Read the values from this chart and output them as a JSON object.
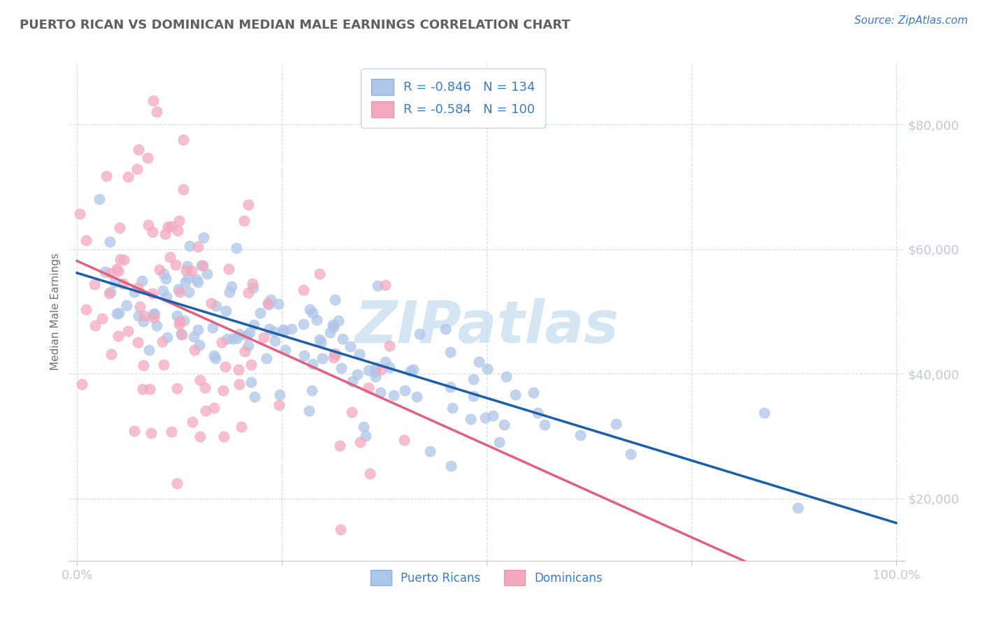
{
  "title": "PUERTO RICAN VS DOMINICAN MEDIAN MALE EARNINGS CORRELATION CHART",
  "source": "Source: ZipAtlas.com",
  "ylabel": "Median Male Earnings",
  "y_ticks": [
    20000,
    40000,
    60000,
    80000
  ],
  "y_tick_labels": [
    "$20,000",
    "$40,000",
    "$60,000",
    "$80,000"
  ],
  "R_pr": -0.846,
  "N_pr": 134,
  "R_dom": -0.584,
  "N_dom": 100,
  "color_pr": "#aec6e8",
  "color_dom": "#f4a8be",
  "line_color_pr": "#1a5fa8",
  "line_color_dom": "#e06080",
  "watermark": "ZIPatlas",
  "watermark_color": "#b8d4ee",
  "background_color": "#ffffff",
  "title_color": "#606060",
  "title_fontsize": 13,
  "tick_label_color": "#3a7bc8",
  "grid_color": "#d0d8e8",
  "source_color": "#3a7bc8",
  "legend_r_color": "#e06080",
  "legend_n_color": "#3a7bc8"
}
